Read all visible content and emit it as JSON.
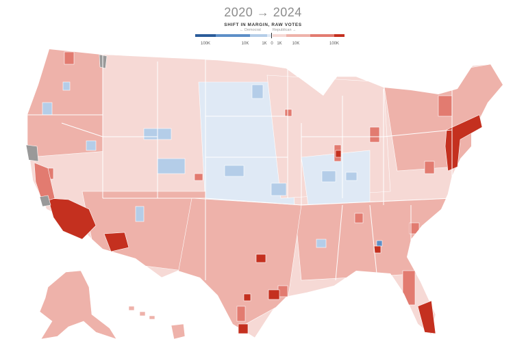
{
  "header": {
    "title": "2020 → 2024",
    "subtitle": "SHIFT IN MARGIN, RAW VOTES",
    "direction_democrat": "← Democrat",
    "direction_republican": "Republican →"
  },
  "legend": {
    "ticks": [
      "100K",
      "10K",
      "1K",
      "0",
      "1K",
      "10K",
      "100K"
    ],
    "colors": {
      "dem_strong": "#2b5c9a",
      "dem_mid": "#5d8fc7",
      "dem_light": "#b4cde8",
      "dem_faint": "#dfe9f5",
      "rep_faint": "#f6d9d5",
      "rep_light": "#eeb2aa",
      "rep_mid": "#e27b70",
      "rep_strong": "#c4301f",
      "no_data": "#999999",
      "border": "#ffffff"
    }
  },
  "regions": [
    {
      "id": "pacific-northwest",
      "shift": "rep_light"
    },
    {
      "id": "northern-plains",
      "shift": "dem_faint"
    },
    {
      "id": "southern-california",
      "shift": "rep_strong"
    },
    {
      "id": "phoenix-area",
      "shift": "rep_strong"
    },
    {
      "id": "texas-metros",
      "shift": "rep_strong"
    },
    {
      "id": "south-florida",
      "shift": "rep_strong"
    },
    {
      "id": "northeast-corridor",
      "shift": "rep_strong"
    },
    {
      "id": "northern-california",
      "shift": "no_data"
    },
    {
      "id": "alaska",
      "shift": "rep_light"
    },
    {
      "id": "hawaii",
      "shift": "rep_light"
    }
  ]
}
